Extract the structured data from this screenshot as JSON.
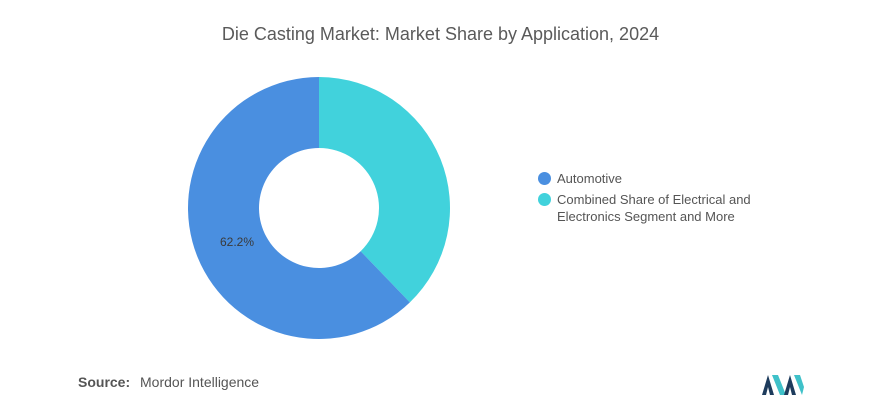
{
  "title": "Die Casting Market: Market Share by Application, 2024",
  "chart_data": {
    "type": "pie",
    "title": "Die Casting Market: Market Share by Application, 2024",
    "donut": true,
    "slices": [
      {
        "label": "Automotive",
        "value": 62.2,
        "color": "#4a8fe0",
        "data_label": "62.2%"
      },
      {
        "label": "Combined Share of Electrical and Electronics Segment and More",
        "value": 37.8,
        "color": "#41d2dc",
        "data_label": ""
      }
    ],
    "legend_position": "right"
  },
  "legend": [
    {
      "label": "Automotive",
      "color": "#4a8fe0"
    },
    {
      "label": "Combined Share of Electrical and Electronics Segment and More",
      "color": "#41d2dc"
    }
  ],
  "source": {
    "label": "Source:",
    "text": "Mordor Intelligence"
  },
  "logo": {
    "icon": "mordor-intelligence-logo-icon",
    "color_dark": "#1d3b5c",
    "color_light": "#3fc1c9"
  }
}
